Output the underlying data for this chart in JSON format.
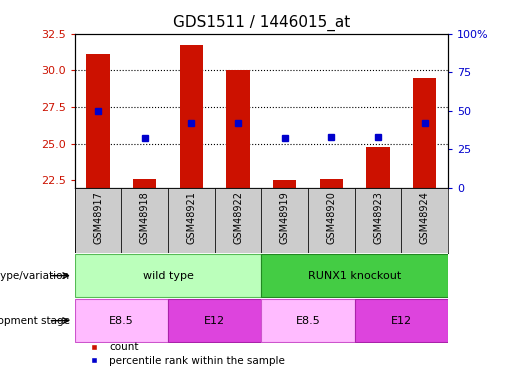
{
  "title": "GDS1511 / 1446015_at",
  "samples": [
    "GSM48917",
    "GSM48918",
    "GSM48921",
    "GSM48922",
    "GSM48919",
    "GSM48920",
    "GSM48923",
    "GSM48924"
  ],
  "counts": [
    31.1,
    22.6,
    31.7,
    30.0,
    22.5,
    22.6,
    24.8,
    29.5
  ],
  "percentiles": [
    50,
    32,
    42,
    42,
    32,
    33,
    33,
    42
  ],
  "ylim_left": [
    22.0,
    32.5
  ],
  "ylim_right": [
    0,
    100
  ],
  "yticks_left": [
    22.5,
    25.0,
    27.5,
    30.0,
    32.5
  ],
  "yticks_right": [
    0,
    25,
    50,
    75,
    100
  ],
  "bar_color": "#cc1100",
  "dot_color": "#0000cc",
  "bar_bottom": 22.0,
  "genotype_groups": [
    {
      "label": "wild type",
      "start": 0,
      "end": 4,
      "color": "#bbffbb",
      "border_color": "#55bb55"
    },
    {
      "label": "RUNX1 knockout",
      "start": 4,
      "end": 8,
      "color": "#44cc44",
      "border_color": "#228822"
    }
  ],
  "stage_groups": [
    {
      "label": "E8.5",
      "start": 0,
      "end": 2,
      "color": "#ffbbff",
      "border_color": "#cc55cc"
    },
    {
      "label": "E12",
      "start": 2,
      "end": 4,
      "color": "#dd44dd",
      "border_color": "#aa22aa"
    },
    {
      "label": "E8.5",
      "start": 4,
      "end": 6,
      "color": "#ffbbff",
      "border_color": "#cc55cc"
    },
    {
      "label": "E12",
      "start": 6,
      "end": 8,
      "color": "#dd44dd",
      "border_color": "#aa22aa"
    }
  ],
  "legend_items": [
    {
      "label": "count",
      "color": "#cc1100"
    },
    {
      "label": "percentile rank within the sample",
      "color": "#0000cc"
    }
  ],
  "left_tick_color": "#cc1100",
  "right_tick_color": "#0000cc",
  "sample_area_color": "#cccccc",
  "grid_yticks": [
    25.0,
    27.5,
    30.0
  ]
}
